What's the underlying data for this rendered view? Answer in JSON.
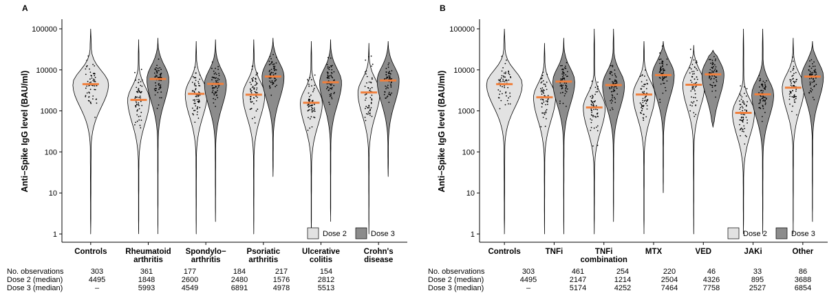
{
  "chart_data": [
    {
      "panel": "A",
      "type": "violin",
      "ylabel": "Anti−Spike IgG level (BAU/ml)",
      "y_scale": "log10",
      "ylim": [
        1,
        100000
      ],
      "y_ticks": [
        "1",
        "10",
        "100",
        "1000",
        "10000",
        "100000"
      ],
      "legend": [
        {
          "name": "Dose 2",
          "color": "#e2e2e2"
        },
        {
          "name": "Dose 3",
          "color": "#8c8c8c"
        }
      ],
      "legend_position": "bottom-right",
      "median_color": "#f07f3c",
      "table_labels": [
        "No. observations",
        "Dose 2 (median)",
        "Dose 3 (median)"
      ],
      "groups": [
        {
          "label": [
            "Controls"
          ],
          "n": "303",
          "dose2": "4495",
          "dose3": "–",
          "median2": 4495,
          "median3": null,
          "range2": [
            1,
            100000
          ],
          "range3": null
        },
        {
          "label": [
            "Rheumatoid",
            "arthritis"
          ],
          "n": "361",
          "dose2": "1848",
          "dose3": "5993",
          "median2": 1848,
          "median3": 5993,
          "range2": [
            1,
            55000
          ],
          "range3": [
            1,
            60000
          ]
        },
        {
          "label": [
            "Spondylo−",
            "arthritis"
          ],
          "n": "177",
          "dose2": "2600",
          "dose3": "4549",
          "median2": 2600,
          "median3": 4549,
          "range2": [
            1,
            50000
          ],
          "range3": [
            2,
            55000
          ]
        },
        {
          "label": [
            "Psoriatic",
            "arthritis"
          ],
          "n": "184",
          "dose2": "2480",
          "dose3": "6891",
          "median2": 2480,
          "median3": 6891,
          "range2": [
            1,
            55000
          ],
          "range3": [
            25,
            60000
          ]
        },
        {
          "label": [
            "Ulcerative",
            "colitis"
          ],
          "n": "217",
          "dose2": "1576",
          "dose3": "4978",
          "median2": 1576,
          "median3": 4978,
          "range2": [
            1,
            50000
          ],
          "range3": [
            2,
            55000
          ]
        },
        {
          "label": [
            "Crohn's",
            "disease"
          ],
          "n": "154",
          "dose2": "2812",
          "dose3": "5513",
          "median2": 2812,
          "median3": 5513,
          "range2": [
            1,
            45000
          ],
          "range3": [
            25,
            50000
          ]
        }
      ]
    },
    {
      "panel": "B",
      "type": "violin",
      "ylabel": "Anti−Spike IgG level (BAU/ml)",
      "y_scale": "log10",
      "ylim": [
        1,
        100000
      ],
      "y_ticks": [
        "1",
        "10",
        "100",
        "1000",
        "10000",
        "100000"
      ],
      "legend": [
        {
          "name": "Dose 2",
          "color": "#e2e2e2"
        },
        {
          "name": "Dose 3",
          "color": "#8c8c8c"
        }
      ],
      "legend_position": "bottom-right",
      "median_color": "#f07f3c",
      "table_labels": [
        "No. observations",
        "Dose 2 (median)",
        "Dose 3 (median)"
      ],
      "groups": [
        {
          "label": [
            "Controls"
          ],
          "n": "303",
          "dose2": "4495",
          "dose3": "–",
          "median2": 4495,
          "median3": null,
          "range2": [
            1,
            100000
          ],
          "range3": null
        },
        {
          "label": [
            "TNFi"
          ],
          "n": "461",
          "dose2": "2147",
          "dose3": "5174",
          "median2": 2147,
          "median3": 5174,
          "range2": [
            1,
            45000
          ],
          "range3": [
            1,
            60000
          ]
        },
        {
          "label": [
            "TNFi",
            "combination"
          ],
          "n": "254",
          "dose2": "1214",
          "dose3": "4252",
          "median2": 1214,
          "median3": 4252,
          "range2": [
            1,
            100000
          ],
          "range3": [
            2,
            100000
          ]
        },
        {
          "label": [
            "MTX"
          ],
          "n": "220",
          "dose2": "2504",
          "dose3": "7464",
          "median2": 2504,
          "median3": 7464,
          "range2": [
            1,
            50000
          ],
          "range3": [
            10,
            50000
          ]
        },
        {
          "label": [
            "VED"
          ],
          "n": "46",
          "dose2": "4326",
          "dose3": "7758",
          "median2": 4326,
          "median3": 7758,
          "range2": [
            1,
            40000
          ],
          "range3": [
            400,
            30000
          ]
        },
        {
          "label": [
            "JAKi"
          ],
          "n": "33",
          "dose2": "895",
          "dose3": "2527",
          "median2": 895,
          "median3": 2527,
          "range2": [
            1,
            100000
          ],
          "range3": [
            1,
            100000
          ]
        },
        {
          "label": [
            "Other"
          ],
          "n": "86",
          "dose2": "3688",
          "dose3": "6854",
          "median2": 3688,
          "median3": 6854,
          "range2": [
            1,
            60000
          ],
          "range3": [
            2,
            50000
          ]
        }
      ]
    }
  ]
}
